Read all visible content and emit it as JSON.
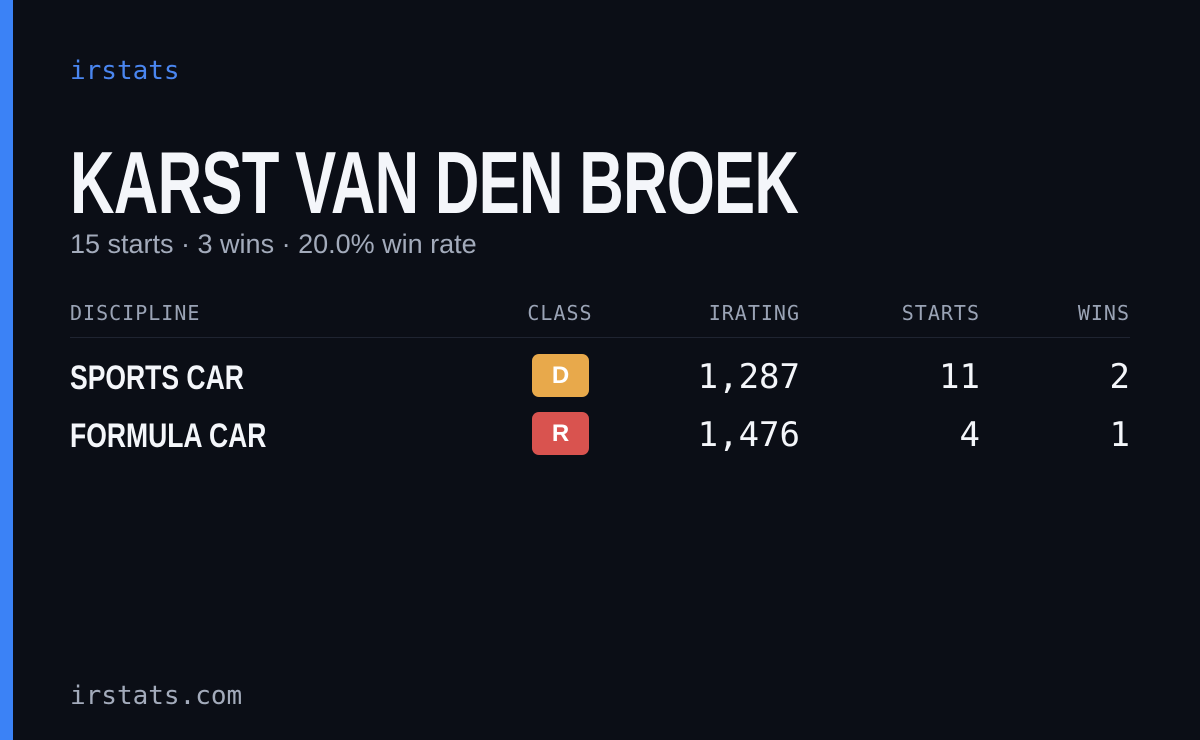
{
  "brand": "irstats",
  "driver": {
    "name": "KARST VAN DEN BROEK",
    "summary": "15 starts · 3 wins · 20.0% win rate"
  },
  "table": {
    "headers": [
      "DISCIPLINE",
      "CLASS",
      "IRATING",
      "STARTS",
      "WINS"
    ],
    "rows": [
      {
        "discipline": "SPORTS CAR",
        "class": "D",
        "class_color": "#e8a94b",
        "irating": "1,287",
        "starts": "11",
        "wins": "2"
      },
      {
        "discipline": "FORMULA CAR",
        "class": "R",
        "class_color": "#d9534f",
        "irating": "1,476",
        "starts": "4",
        "wins": "1"
      }
    ]
  },
  "footer": "irstats.com"
}
